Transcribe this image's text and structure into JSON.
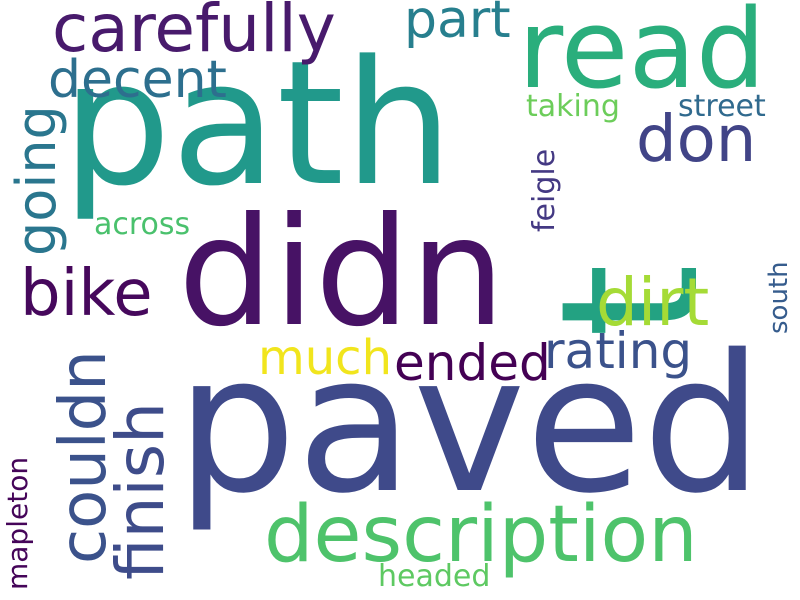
{
  "words": {
    "path": {
      "text": "path",
      "color": "#21998b"
    },
    "paved": {
      "text": "paved",
      "color": "#3f4a8a"
    },
    "didn": {
      "text": "didn",
      "color": "#471265"
    },
    "t": {
      "text": "t",
      "color": "#23a282"
    },
    "read": {
      "text": "read",
      "color": "#2aae7c"
    },
    "carefully": {
      "text": "carefully",
      "color": "#481a6c"
    },
    "description": {
      "text": "description",
      "color": "#4ec36b"
    },
    "part": {
      "text": "part",
      "color": "#277f8e"
    },
    "decent": {
      "text": "decent",
      "color": "#2d6f8e"
    },
    "don": {
      "text": "don",
      "color": "#414487"
    },
    "going": {
      "text": "going",
      "color": "#2a768e"
    },
    "bike": {
      "text": "bike",
      "color": "#46085c"
    },
    "dirt": {
      "text": "dirt",
      "color": "#a5db36"
    },
    "couldn": {
      "text": "couldn",
      "color": "#3b528b"
    },
    "finish": {
      "text": "finish",
      "color": "#3e4c8a"
    },
    "rating": {
      "text": "rating",
      "color": "#3b528b"
    },
    "much": {
      "text": "much",
      "color": "#f1e51d"
    },
    "ended": {
      "text": "ended",
      "color": "#440154"
    },
    "taking": {
      "text": "taking",
      "color": "#6ccd5a"
    },
    "street": {
      "text": "street",
      "color": "#306a8e"
    },
    "feigle": {
      "text": "feigle",
      "color": "#443983"
    },
    "across": {
      "text": "across",
      "color": "#4ac16d"
    },
    "south": {
      "text": "south",
      "color": "#365c8d"
    },
    "mapleton": {
      "text": "mapleton",
      "color": "#450559"
    },
    "headed": {
      "text": "headed",
      "color": "#5ec962"
    }
  }
}
